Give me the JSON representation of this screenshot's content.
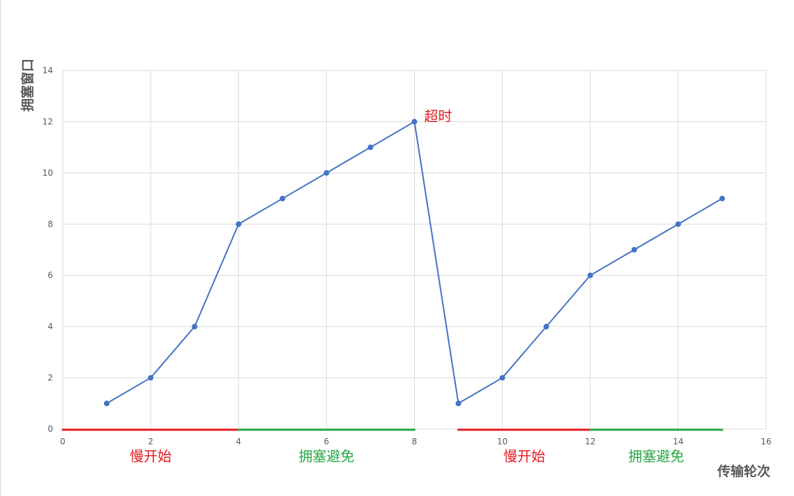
{
  "chart_data": {
    "type": "line",
    "title": "",
    "xlabel": "传输轮次",
    "ylabel": "拥塞窗口",
    "xlim": [
      0,
      16
    ],
    "ylim": [
      0,
      14
    ],
    "x_ticks": [
      0,
      2,
      4,
      6,
      8,
      10,
      12,
      14,
      16
    ],
    "y_ticks": [
      0,
      2,
      4,
      6,
      8,
      10,
      12,
      14
    ],
    "grid": true,
    "legend": "none",
    "series": [
      {
        "color": "#4472c4",
        "points": [
          {
            "x": 1,
            "y": 1
          },
          {
            "x": 2,
            "y": 2
          },
          {
            "x": 3,
            "y": 4
          },
          {
            "x": 4,
            "y": 8
          },
          {
            "x": 5,
            "y": 9
          },
          {
            "x": 6,
            "y": 10
          },
          {
            "x": 7,
            "y": 11
          },
          {
            "x": 8,
            "y": 12
          },
          {
            "x": 9,
            "y": 1
          },
          {
            "x": 10,
            "y": 2
          },
          {
            "x": 11,
            "y": 4
          },
          {
            "x": 12,
            "y": 6
          },
          {
            "x": 13,
            "y": 7
          },
          {
            "x": 14,
            "y": 8
          },
          {
            "x": 15,
            "y": 9
          }
        ]
      }
    ],
    "phases": [
      {
        "label": "慢开始",
        "x_start": 0,
        "x_end": 4,
        "color": "#e31a1c"
      },
      {
        "label": "拥塞避免",
        "x_start": 4,
        "x_end": 8,
        "color": "#27a744"
      },
      {
        "label": "慢开始",
        "x_start": 9,
        "x_end": 12,
        "color": "#e31a1c"
      },
      {
        "label": "拥塞避免",
        "x_start": 12,
        "x_end": 15,
        "color": "#27a744"
      }
    ],
    "annotations": [
      {
        "text": "超时",
        "x": 8,
        "y": 12,
        "color": "#e31a1c"
      }
    ]
  },
  "colors": {
    "gridline": "#d9d9d9",
    "axis_text": "#595959"
  }
}
